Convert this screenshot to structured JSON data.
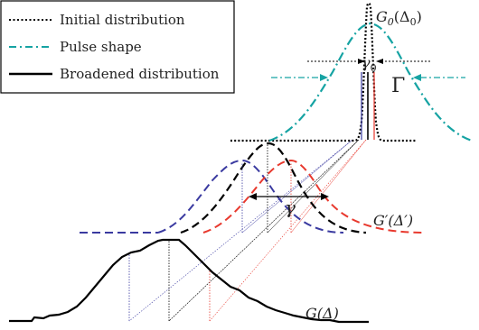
{
  "legend": {
    "items": [
      {
        "label": "Initial distribution",
        "style": "dotted",
        "color": "#000000"
      },
      {
        "label": "Pulse shape",
        "style": "dashdot",
        "color": "#16a3a3"
      },
      {
        "label": "Broadened distribution",
        "style": "solid",
        "color": "#000000"
      }
    ]
  },
  "labels": {
    "g0": "G",
    "g0_sub": "0",
    "g0_arg": "(Δ",
    "g0_arg_sub": "0",
    "g0_close": ")",
    "gamma0": "γ",
    "gamma0_sub": "0",
    "big_gamma": "Γ",
    "gamma": "γ",
    "gprime": "G′(Δ′)",
    "g": "G(Δ)"
  },
  "colors": {
    "black": "#000000",
    "teal": "#16a3a3",
    "blue": "#3a3aa0",
    "red": "#e8392e"
  }
}
